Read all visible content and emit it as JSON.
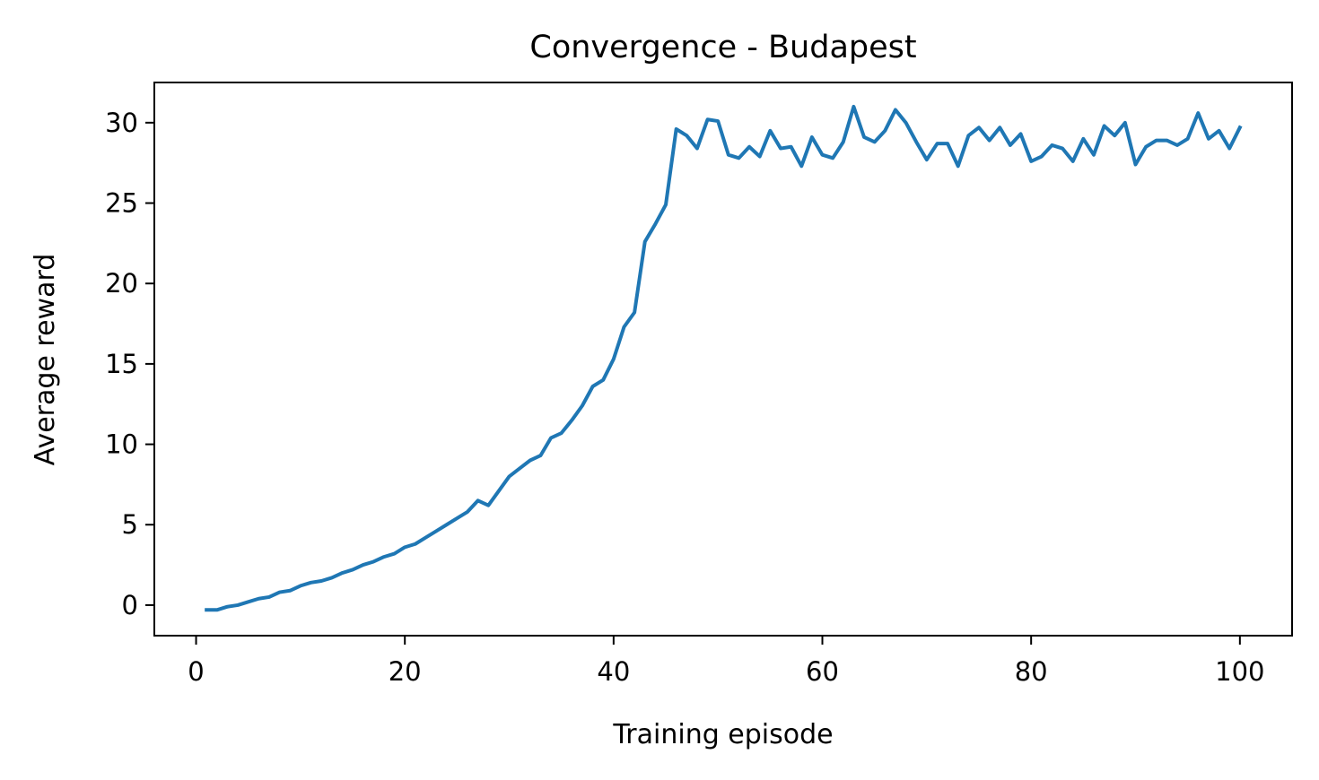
{
  "chart_data": {
    "type": "line",
    "title": "Convergence - Budapest",
    "xlabel": "Training episode",
    "ylabel": "Average reward",
    "xlim": [
      -4,
      105
    ],
    "ylim": [
      -1.9,
      32.5
    ],
    "xticks": [
      0,
      20,
      40,
      60,
      80,
      100
    ],
    "yticks": [
      0,
      5,
      10,
      15,
      20,
      25,
      30
    ],
    "xtick_labels": [
      "0",
      "20",
      "40",
      "60",
      "80",
      "100"
    ],
    "ytick_labels": [
      "0",
      "5",
      "10",
      "15",
      "20",
      "25",
      "30"
    ],
    "grid": false,
    "line_color": "#1f77b4",
    "x": [
      1,
      2,
      3,
      4,
      5,
      6,
      7,
      8,
      9,
      10,
      11,
      12,
      13,
      14,
      15,
      16,
      17,
      18,
      19,
      20,
      21,
      22,
      23,
      24,
      25,
      26,
      27,
      28,
      29,
      30,
      31,
      32,
      33,
      34,
      35,
      36,
      37,
      38,
      39,
      40,
      41,
      42,
      43,
      44,
      45,
      46,
      47,
      48,
      49,
      50,
      51,
      52,
      53,
      54,
      55,
      56,
      57,
      58,
      59,
      60,
      61,
      62,
      63,
      64,
      65,
      66,
      67,
      68,
      69,
      70,
      71,
      72,
      73,
      74,
      75,
      76,
      77,
      78,
      79,
      80,
      81,
      82,
      83,
      84,
      85,
      86,
      87,
      88,
      89,
      90,
      91,
      92,
      93,
      94,
      95,
      96,
      97,
      98,
      99,
      100
    ],
    "series": [
      {
        "values": [
          -0.3,
          -0.3,
          -0.1,
          0.0,
          0.2,
          0.4,
          0.5,
          0.8,
          0.9,
          1.2,
          1.4,
          1.5,
          1.7,
          2.0,
          2.2,
          2.5,
          2.7,
          3.0,
          3.2,
          3.6,
          3.8,
          4.2,
          4.6,
          5.0,
          5.4,
          5.8,
          6.5,
          6.2,
          7.1,
          8.0,
          8.5,
          9.0,
          9.3,
          10.4,
          10.7,
          11.5,
          12.4,
          13.6,
          14.0,
          15.3,
          17.3,
          18.2,
          22.6,
          23.7,
          24.9,
          29.6,
          29.2,
          28.4,
          30.2,
          30.1,
          28.0,
          27.8,
          28.5,
          27.9,
          29.5,
          28.4,
          28.5,
          27.3,
          29.1,
          28.0,
          27.8,
          28.8,
          31.0,
          29.1,
          28.8,
          29.5,
          30.8,
          30.0,
          28.8,
          27.7,
          28.7,
          28.7,
          27.3,
          29.2,
          29.7,
          28.9,
          29.7,
          28.6,
          29.3,
          27.6,
          27.9,
          28.6,
          28.4,
          27.6,
          29.0,
          28.0,
          29.8,
          29.2,
          30.0,
          27.4,
          28.5,
          28.9,
          28.9,
          28.6,
          29.0,
          30.6,
          29.0,
          29.5,
          28.4,
          29.7
        ]
      }
    ]
  }
}
